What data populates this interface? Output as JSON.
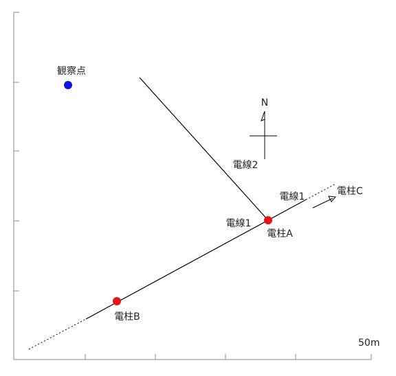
{
  "observation_point": {
    "label": "観察点"
  },
  "poles": [
    {
      "label": "電柱A"
    },
    {
      "label": "電柱B"
    },
    {
      "label": "電柱C"
    }
  ],
  "wires": [
    {
      "label": "電線2"
    },
    {
      "label": "電線1"
    },
    {
      "label": "電線1"
    }
  ],
  "compass": {
    "label": "N"
  },
  "scale": {
    "label": "50m"
  }
}
